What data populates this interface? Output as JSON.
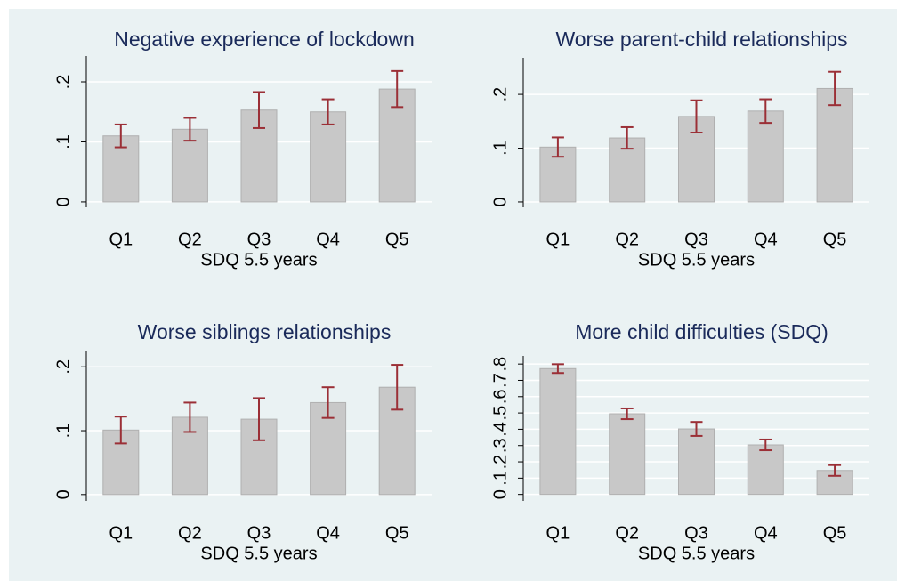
{
  "chart_data": [
    {
      "type": "bar",
      "title": "Negative experience of lockdown",
      "x_label": "SDQ 5.5 years",
      "categories": [
        "Q1",
        "Q2",
        "Q3",
        "Q4",
        "Q5"
      ],
      "values": [
        0.11,
        0.121,
        0.153,
        0.15,
        0.188
      ],
      "errors": [
        0.019,
        0.019,
        0.03,
        0.021,
        0.03
      ],
      "color": "#c8c8c8",
      "error_color": "#9b2f36",
      "grid": true,
      "ylim": [
        -0.009,
        0.243
      ],
      "yticks": [
        0,
        {
          "value": 0.1,
          "label": ".1"
        },
        {
          "value": 0.2,
          "label": ".2"
        }
      ]
    },
    {
      "type": "bar",
      "title": "Worse parent-child relationships",
      "x_label": "SDQ 5.5 years",
      "categories": [
        "Q1",
        "Q2",
        "Q3",
        "Q4",
        "Q5"
      ],
      "values": [
        0.102,
        0.119,
        0.159,
        0.169,
        0.211
      ],
      "errors": [
        0.018,
        0.02,
        0.03,
        0.022,
        0.031
      ],
      "color": "#c8c8c8",
      "error_color": "#9b2f36",
      "grid": true,
      "ylim": [
        -0.01,
        0.268
      ],
      "yticks": [
        0,
        {
          "value": 0.1,
          "label": ".1"
        },
        {
          "value": 0.2,
          "label": ".2"
        }
      ]
    },
    {
      "type": "bar",
      "title": "Worse siblings relationships",
      "x_label": "SDQ 5.5 years",
      "categories": [
        "Q1",
        "Q2",
        "Q3",
        "Q4",
        "Q5"
      ],
      "values": [
        0.101,
        0.121,
        0.118,
        0.144,
        0.168
      ],
      "errors": [
        0.021,
        0.023,
        0.033,
        0.024,
        0.035
      ],
      "color": "#c8c8c8",
      "error_color": "#9b2f36",
      "grid": true,
      "ylim": [
        -0.01,
        0.224
      ],
      "yticks": [
        0,
        {
          "value": 0.1,
          "label": ".1"
        },
        {
          "value": 0.2,
          "label": ".2"
        }
      ]
    },
    {
      "type": "bar",
      "title": "More child difficulties (SDQ)",
      "x_label": "SDQ 5.5 years",
      "categories": [
        "Q1",
        "Q2",
        "Q3",
        "Q4",
        "Q5"
      ],
      "values": [
        0.772,
        0.495,
        0.402,
        0.304,
        0.147
      ],
      "errors": [
        0.027,
        0.033,
        0.043,
        0.033,
        0.033
      ],
      "color": "#c8c8c8",
      "error_color": "#9b2f36",
      "grid": true,
      "ylim": [
        -0.04,
        0.85
      ],
      "yticks": [
        0,
        {
          "value": 0.1,
          "label": ".1"
        },
        {
          "value": 0.2,
          "label": ".2"
        },
        {
          "value": 0.3,
          "label": ".3"
        },
        {
          "value": 0.4,
          "label": ".4"
        },
        {
          "value": 0.5,
          "label": ".5"
        },
        {
          "value": 0.6,
          "label": ".6"
        },
        {
          "value": 0.7,
          "label": ".7"
        },
        {
          "value": 0.8,
          "label": ".8"
        }
      ]
    }
  ]
}
